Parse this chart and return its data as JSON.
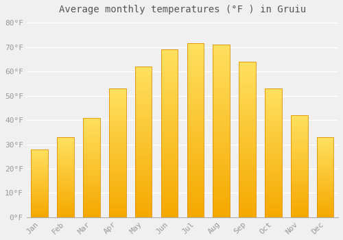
{
  "title": "Average monthly temperatures (°F ) in Gruiu",
  "months": [
    "Jan",
    "Feb",
    "Mar",
    "Apr",
    "May",
    "Jun",
    "Jul",
    "Aug",
    "Sep",
    "Oct",
    "Nov",
    "Dec"
  ],
  "values": [
    28,
    33,
    41,
    53,
    62,
    69,
    71.5,
    71,
    64,
    53,
    42,
    33
  ],
  "bar_color_bottom": "#F5A800",
  "bar_color_top": "#FFE060",
  "bar_edge_color": "#E09000",
  "background_color": "#F0F0F0",
  "grid_color": "#FFFFFF",
  "text_color": "#999999",
  "title_color": "#555555",
  "ylim": [
    0,
    82
  ],
  "yticks": [
    0,
    10,
    20,
    30,
    40,
    50,
    60,
    70,
    80
  ],
  "title_fontsize": 10,
  "tick_fontsize": 8,
  "bar_width": 0.65
}
